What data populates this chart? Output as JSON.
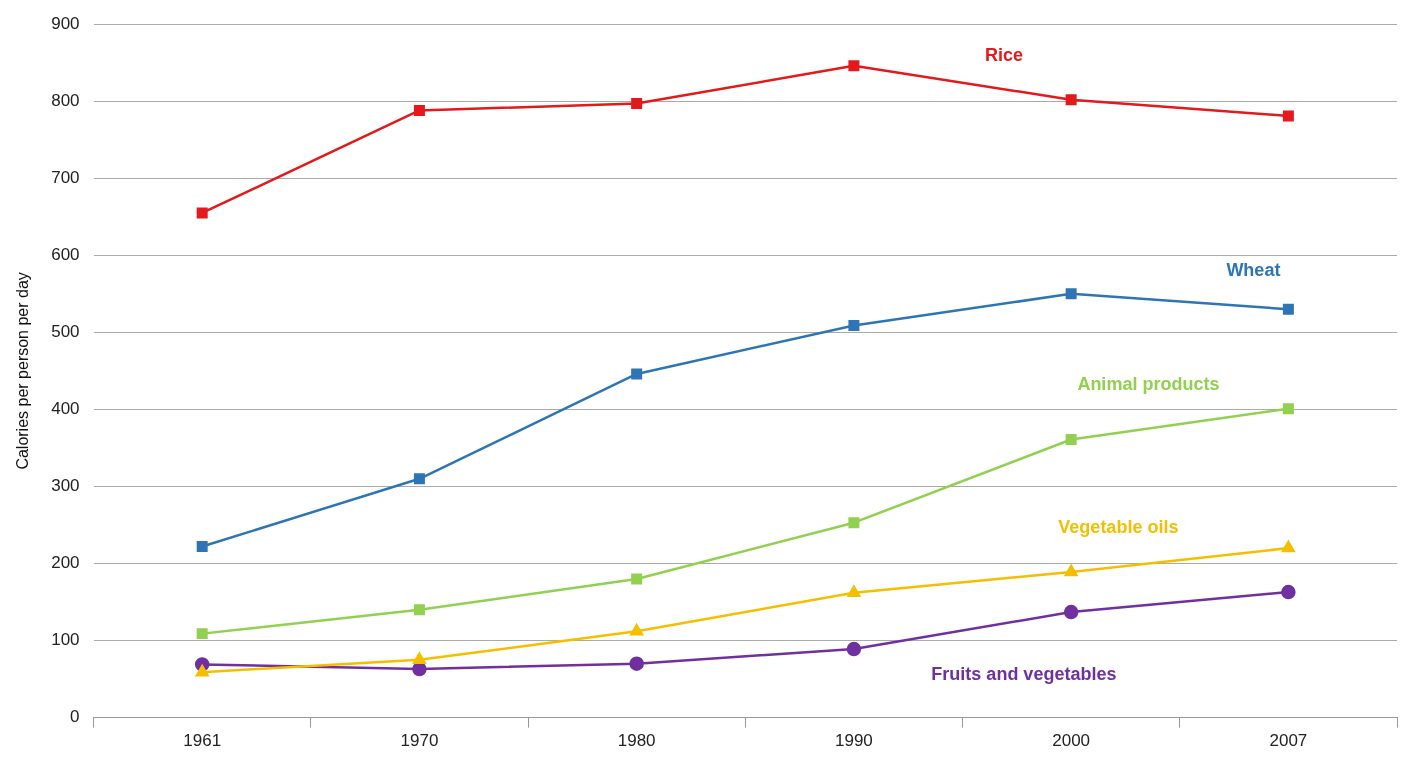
{
  "chart_data": {
    "type": "line",
    "ylabel": "Calories per person per day",
    "categories": [
      "1961",
      "1970",
      "1980",
      "1990",
      "2000",
      "2007"
    ],
    "series": [
      {
        "name": "Rice",
        "color": "#e3191c",
        "marker": "square",
        "values": [
          655,
          788,
          797,
          846,
          802,
          781
        ]
      },
      {
        "name": "Wheat",
        "color": "#2e75b6",
        "marker": "square",
        "values": [
          222,
          310,
          446,
          509,
          550,
          530
        ]
      },
      {
        "name": "Animal products",
        "color": "#92d050",
        "marker": "square",
        "values": [
          109,
          140,
          180,
          253,
          361,
          401
        ]
      },
      {
        "name": "Vegetable oils",
        "color": "#f5bf00",
        "marker": "triangle",
        "values": [
          59,
          75,
          112,
          162,
          189,
          220
        ]
      },
      {
        "name": "Fruits and vegetables",
        "color": "#7030a0",
        "marker": "circle",
        "values": [
          69,
          63,
          70,
          89,
          137,
          163
        ]
      }
    ],
    "ylim": [
      0,
      900
    ],
    "yticks": [
      0,
      100,
      200,
      300,
      400,
      500,
      600,
      700,
      800,
      900
    ],
    "grid": "y",
    "legend": false,
    "line_style": "solid"
  }
}
